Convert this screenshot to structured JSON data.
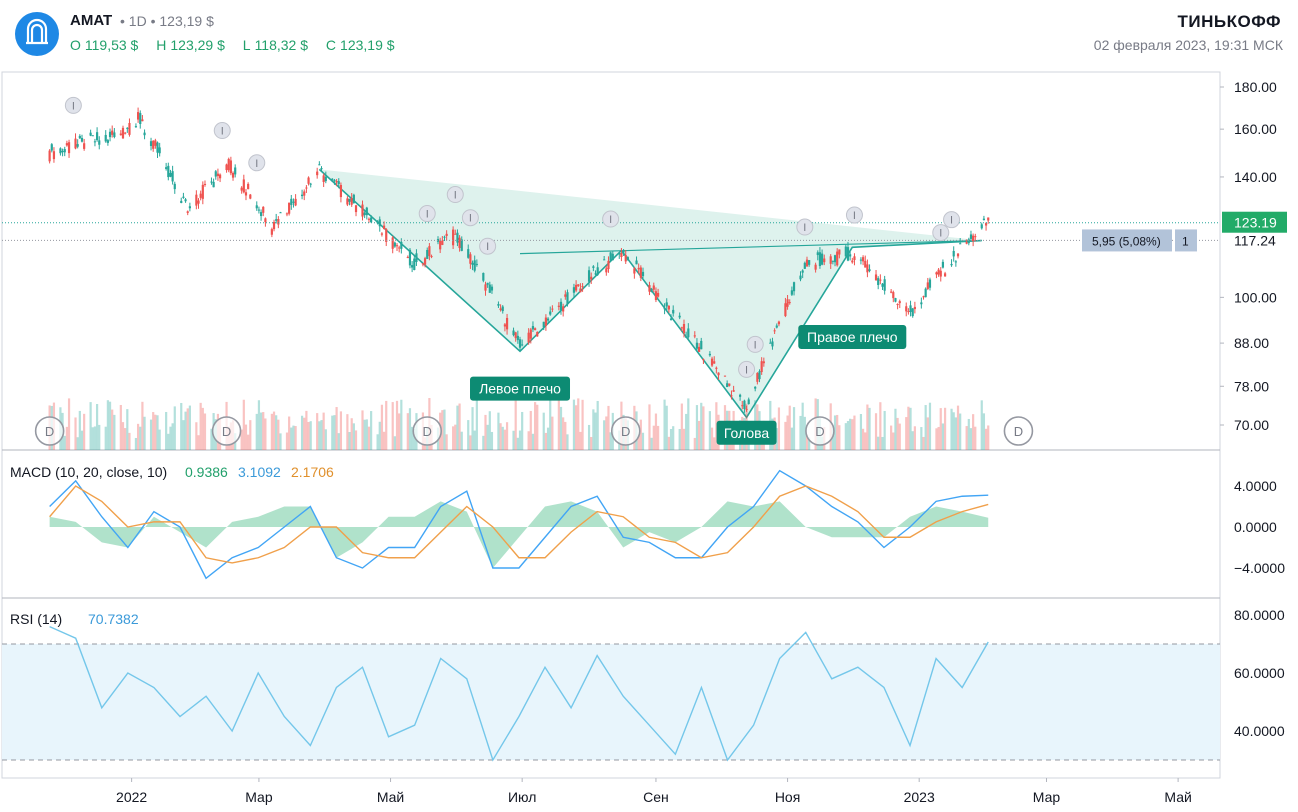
{
  "header": {
    "ticker": "AMAT",
    "interval": "1D",
    "last_price": "123,19 $",
    "ohlc": [
      {
        "key": "O",
        "value": "119,53 $"
      },
      {
        "key": "H",
        "value": "123,29 $"
      },
      {
        "key": "L",
        "value": "118,32 $"
      },
      {
        "key": "C",
        "value": "123,19 $"
      }
    ],
    "brand": "ТИНЬКОФФ",
    "datetime": "02 февраля 2023, 19:31 МСК"
  },
  "colors": {
    "up": "#26a69a",
    "down": "#ef5350",
    "pattern_fill": "#d6efe8",
    "pattern_line": "#26a69a",
    "macd_line": "#42a5f5",
    "signal_line": "#f0a04b",
    "rsi_line": "#74c7ea",
    "rsi_band": "#e8f5fc",
    "label_bg": "#0d8b73"
  },
  "chart_data": [
    {
      "type": "candlestick",
      "title": "",
      "x_ticks": [
        "2022",
        "Мар",
        "Май",
        "Июл",
        "Сен",
        "Ноя",
        "2023",
        "Мар",
        "Май"
      ],
      "y_ticks": [
        "180.00",
        "160.00",
        "140.00",
        "100.00",
        "88.00",
        "78.00",
        "70.00"
      ],
      "y_scale": "log",
      "ylim": [
        66,
        186
      ],
      "price_labels": {
        "last": "123.19",
        "level": "117.24",
        "measure": "5,95 (5,08%)",
        "measure_count": "1"
      },
      "pattern": {
        "name": "inverse head and shoulders",
        "labels": [
          "Левое плечо",
          "Голова",
          "Правое плечо"
        ],
        "points": [
          {
            "date": "2022-03-29",
            "price": 143
          },
          {
            "date": "2022-06-30",
            "price": 86
          },
          {
            "date": "2022-08-16",
            "price": 114
          },
          {
            "date": "2022-10-13",
            "price": 71.5
          },
          {
            "date": "2022-12-01",
            "price": 115
          },
          {
            "date": "2023-01-30",
            "price": 117.2
          }
        ],
        "neckline": [
          [
            "2022-06-30",
            113
          ],
          [
            "2023-01-30",
            117.24
          ]
        ]
      },
      "anchors": [
        {
          "date": "2021-11-24",
          "price": 150
        },
        {
          "date": "2021-12-27",
          "price": 158
        },
        {
          "date": "2022-01-04",
          "price": 165
        },
        {
          "date": "2022-01-27",
          "price": 128
        },
        {
          "date": "2022-02-15",
          "price": 145
        },
        {
          "date": "2022-03-07",
          "price": 122
        },
        {
          "date": "2022-03-29",
          "price": 142
        },
        {
          "date": "2022-05-12",
          "price": 110
        },
        {
          "date": "2022-05-31",
          "price": 119
        },
        {
          "date": "2022-06-30",
          "price": 87
        },
        {
          "date": "2022-08-16",
          "price": 114
        },
        {
          "date": "2022-09-07",
          "price": 96
        },
        {
          "date": "2022-10-13",
          "price": 73
        },
        {
          "date": "2022-11-10",
          "price": 110
        },
        {
          "date": "2022-12-01",
          "price": 113
        },
        {
          "date": "2022-12-28",
          "price": 96
        },
        {
          "date": "2023-01-25",
          "price": 118
        },
        {
          "date": "2023-02-02",
          "price": 123.19
        }
      ],
      "event_markers": {
        "I": [
          "2021-12-05",
          "2022-02-12",
          "2022-02-28",
          "2022-05-18",
          "2022-05-31",
          "2022-06-07",
          "2022-06-15",
          "2022-08-11",
          "2022-10-13",
          "2022-10-17",
          "2022-11-09",
          "2022-12-02",
          "2023-01-11",
          "2023-01-16"
        ],
        "D": [
          "2021-11-24",
          "2022-02-14",
          "2022-05-18",
          "2022-08-18",
          "2022-11-16",
          "2023-02-16"
        ]
      }
    },
    {
      "type": "line",
      "title": "MACD (10, 20, close, 10)",
      "values_shown": [
        "0.9386",
        "3.1092",
        "2.1706"
      ],
      "y_ticks": [
        "4.0000",
        "0.0000",
        "−4.0000"
      ],
      "ylim": [
        -7,
        7
      ],
      "series": [
        {
          "name": "MACD",
          "values": [
            2,
            4.5,
            1,
            -2,
            1.5,
            0,
            -5,
            -3,
            -2,
            0,
            2,
            -3,
            -4,
            -2,
            -2,
            2,
            3.5,
            -4,
            -4,
            -1,
            2,
            3,
            -1,
            -1.5,
            -3,
            -3,
            0,
            2,
            5.5,
            4,
            2,
            0.5,
            -2,
            0,
            2.5,
            3,
            3.1
          ]
        },
        {
          "name": "Signal",
          "values": [
            1,
            4,
            2.5,
            0,
            0.5,
            0.5,
            -3,
            -3.5,
            -3,
            -2,
            0,
            0,
            -2.5,
            -3,
            -3,
            -0.5,
            2,
            0,
            -3,
            -3,
            -0.5,
            1.5,
            1,
            -1,
            -1.5,
            -3,
            -2.5,
            0,
            3,
            4,
            3,
            1.5,
            -1,
            -1,
            0.5,
            1.5,
            2.2
          ]
        },
        {
          "name": "Histogram",
          "values": [
            1,
            0.5,
            -1.5,
            -2,
            1,
            -0.5,
            -2,
            0.5,
            1,
            2,
            2,
            -3,
            -1.5,
            1,
            1,
            2.5,
            1.5,
            -4,
            -1,
            2,
            2.5,
            1.5,
            -2,
            -0.5,
            -1.5,
            0,
            2.5,
            2,
            2.5,
            0,
            -1,
            -1,
            -1,
            1,
            2,
            1.5,
            0.9
          ]
        }
      ]
    },
    {
      "type": "line",
      "title": "RSI (14)",
      "values_shown": [
        "70.7382"
      ],
      "y_ticks": [
        "80.0000",
        "60.0000",
        "40.0000"
      ],
      "ylim": [
        26,
        83
      ],
      "band": [
        30,
        70
      ],
      "series": [
        {
          "name": "RSI",
          "values": [
            76,
            72,
            48,
            60,
            55,
            45,
            52,
            40,
            60,
            45,
            35,
            55,
            62,
            38,
            42,
            65,
            58,
            30,
            45,
            62,
            48,
            66,
            52,
            42,
            32,
            55,
            30,
            42,
            65,
            74,
            58,
            62,
            55,
            35,
            65,
            55,
            70.7
          ]
        }
      ]
    }
  ]
}
